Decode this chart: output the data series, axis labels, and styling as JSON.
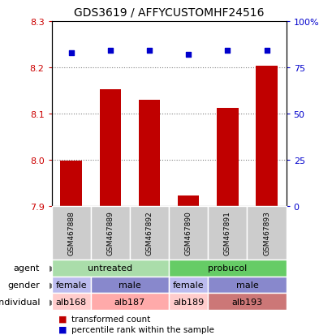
{
  "title": "GDS3619 / AFFYCUSTOMHF24516",
  "samples": [
    "GSM467888",
    "GSM467889",
    "GSM467892",
    "GSM467890",
    "GSM467891",
    "GSM467893"
  ],
  "bar_values": [
    7.998,
    8.152,
    8.13,
    7.922,
    8.112,
    8.204
  ],
  "bar_bottom": 7.9,
  "percentile_values": [
    83,
    84,
    84,
    82,
    84,
    84
  ],
  "ylim_left": [
    7.9,
    8.3
  ],
  "ylim_right": [
    0,
    100
  ],
  "yticks_left": [
    7.9,
    8.0,
    8.1,
    8.2,
    8.3
  ],
  "yticks_right": [
    0,
    25,
    50,
    75,
    100
  ],
  "ytick_labels_right": [
    "0",
    "25",
    "50",
    "75",
    "100%"
  ],
  "bar_color": "#c00000",
  "dot_color": "#0000cc",
  "bar_width": 0.55,
  "agent_labels": [
    {
      "text": "untreated",
      "cols": [
        0,
        1,
        2
      ],
      "color": "#aaddaa"
    },
    {
      "text": "probucol",
      "cols": [
        3,
        4,
        5
      ],
      "color": "#66cc66"
    }
  ],
  "gender_labels": [
    {
      "text": "female",
      "cols": [
        0
      ],
      "color": "#bbbbee"
    },
    {
      "text": "male",
      "cols": [
        1,
        2
      ],
      "color": "#8888cc"
    },
    {
      "text": "female",
      "cols": [
        3
      ],
      "color": "#bbbbee"
    },
    {
      "text": "male",
      "cols": [
        4,
        5
      ],
      "color": "#8888cc"
    }
  ],
  "individual_labels": [
    {
      "text": "alb168",
      "cols": [
        0
      ],
      "color": "#ffcccc"
    },
    {
      "text": "alb187",
      "cols": [
        1,
        2
      ],
      "color": "#ffaaaa"
    },
    {
      "text": "alb189",
      "cols": [
        3
      ],
      "color": "#ffcccc"
    },
    {
      "text": "alb193",
      "cols": [
        4,
        5
      ],
      "color": "#cc7777"
    }
  ],
  "row_labels": [
    "agent",
    "gender",
    "individual"
  ],
  "legend_bar_label": "transformed count",
  "legend_dot_label": "percentile rank within the sample",
  "grid_lines": [
    8.0,
    8.1,
    8.2
  ]
}
